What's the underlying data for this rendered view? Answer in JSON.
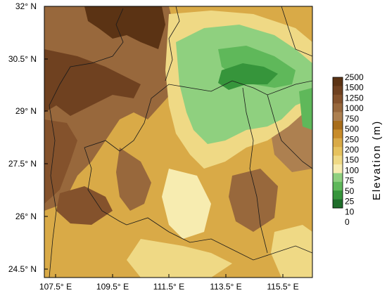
{
  "map": {
    "lon_ticks": [
      "107.5° E",
      "109.5° E",
      "111.5° E",
      "113.5° E",
      "115.5° E"
    ],
    "lat_ticks": [
      "32° N",
      "30.5° N",
      "29° N",
      "27.5° N",
      "26° N",
      "24.5° N"
    ],
    "extent": {
      "lon": [
        107.5,
        115.5
      ],
      "lat": [
        24.5,
        32
      ]
    }
  },
  "colorbar": {
    "title": "Elevation (m)",
    "levels": [
      "2500",
      "1500",
      "1250",
      "1000",
      "750",
      "500",
      "250",
      "200",
      "150",
      "100",
      "75",
      "50",
      "25",
      "10",
      "0"
    ],
    "colors": [
      "#5b3314",
      "#6f4120",
      "#84522c",
      "#98683c",
      "#ad8050",
      "#a86d1a",
      "#c88c2a",
      "#d9aa47",
      "#e6c25e",
      "#efd985",
      "#f7ecb0",
      "#8fd07f",
      "#5fb85a",
      "#36953b",
      "#1f6e2a"
    ]
  }
}
